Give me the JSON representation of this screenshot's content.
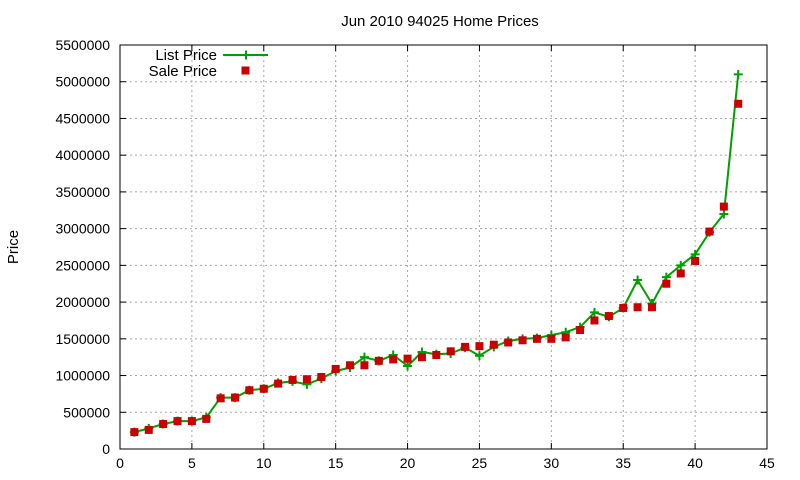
{
  "chart_data": {
    "type": "line",
    "title": "Jun 2010 94025 Home Prices",
    "xlabel": "",
    "ylabel": "Price",
    "xlim": [
      0,
      45
    ],
    "ylim": [
      0,
      5500000
    ],
    "x_ticks": [
      "0",
      "5",
      "10",
      "15",
      "20",
      "25",
      "30",
      "35",
      "40",
      "45"
    ],
    "y_ticks": [
      "0",
      "500000",
      "1000000",
      "1500000",
      "2000000",
      "2500000",
      "3000000",
      "3500000",
      "4000000",
      "4500000",
      "5000000",
      "5500000"
    ],
    "grid": true,
    "legend_position": "top-left",
    "x": [
      1,
      2,
      3,
      4,
      5,
      6,
      7,
      8,
      9,
      10,
      11,
      12,
      13,
      14,
      15,
      16,
      17,
      18,
      19,
      20,
      21,
      22,
      23,
      24,
      25,
      26,
      27,
      28,
      29,
      30,
      31,
      32,
      33,
      34,
      35,
      36,
      37,
      38,
      39,
      40,
      41,
      42,
      43
    ],
    "series": [
      {
        "name": "List Price",
        "style": "line-with-plus-markers",
        "color": "#00a000",
        "values": [
          230000,
          280000,
          340000,
          380000,
          380000,
          430000,
          700000,
          700000,
          800000,
          820000,
          900000,
          920000,
          880000,
          960000,
          1060000,
          1110000,
          1250000,
          1200000,
          1280000,
          1130000,
          1320000,
          1290000,
          1300000,
          1380000,
          1270000,
          1390000,
          1470000,
          1500000,
          1510000,
          1550000,
          1590000,
          1660000,
          1860000,
          1800000,
          1920000,
          2300000,
          1980000,
          2340000,
          2500000,
          2650000,
          2950000,
          3200000,
          5100000
        ]
      },
      {
        "name": "Sale Price",
        "style": "square-markers",
        "color": "#cc0000",
        "values": [
          230000,
          260000,
          340000,
          380000,
          380000,
          410000,
          690000,
          700000,
          800000,
          820000,
          890000,
          940000,
          950000,
          980000,
          1090000,
          1140000,
          1140000,
          1200000,
          1220000,
          1230000,
          1250000,
          1280000,
          1330000,
          1390000,
          1400000,
          1420000,
          1450000,
          1480000,
          1500000,
          1500000,
          1520000,
          1620000,
          1750000,
          1810000,
          1920000,
          1930000,
          1930000,
          2250000,
          2390000,
          2560000,
          2960000,
          3300000,
          4700000
        ]
      }
    ]
  }
}
